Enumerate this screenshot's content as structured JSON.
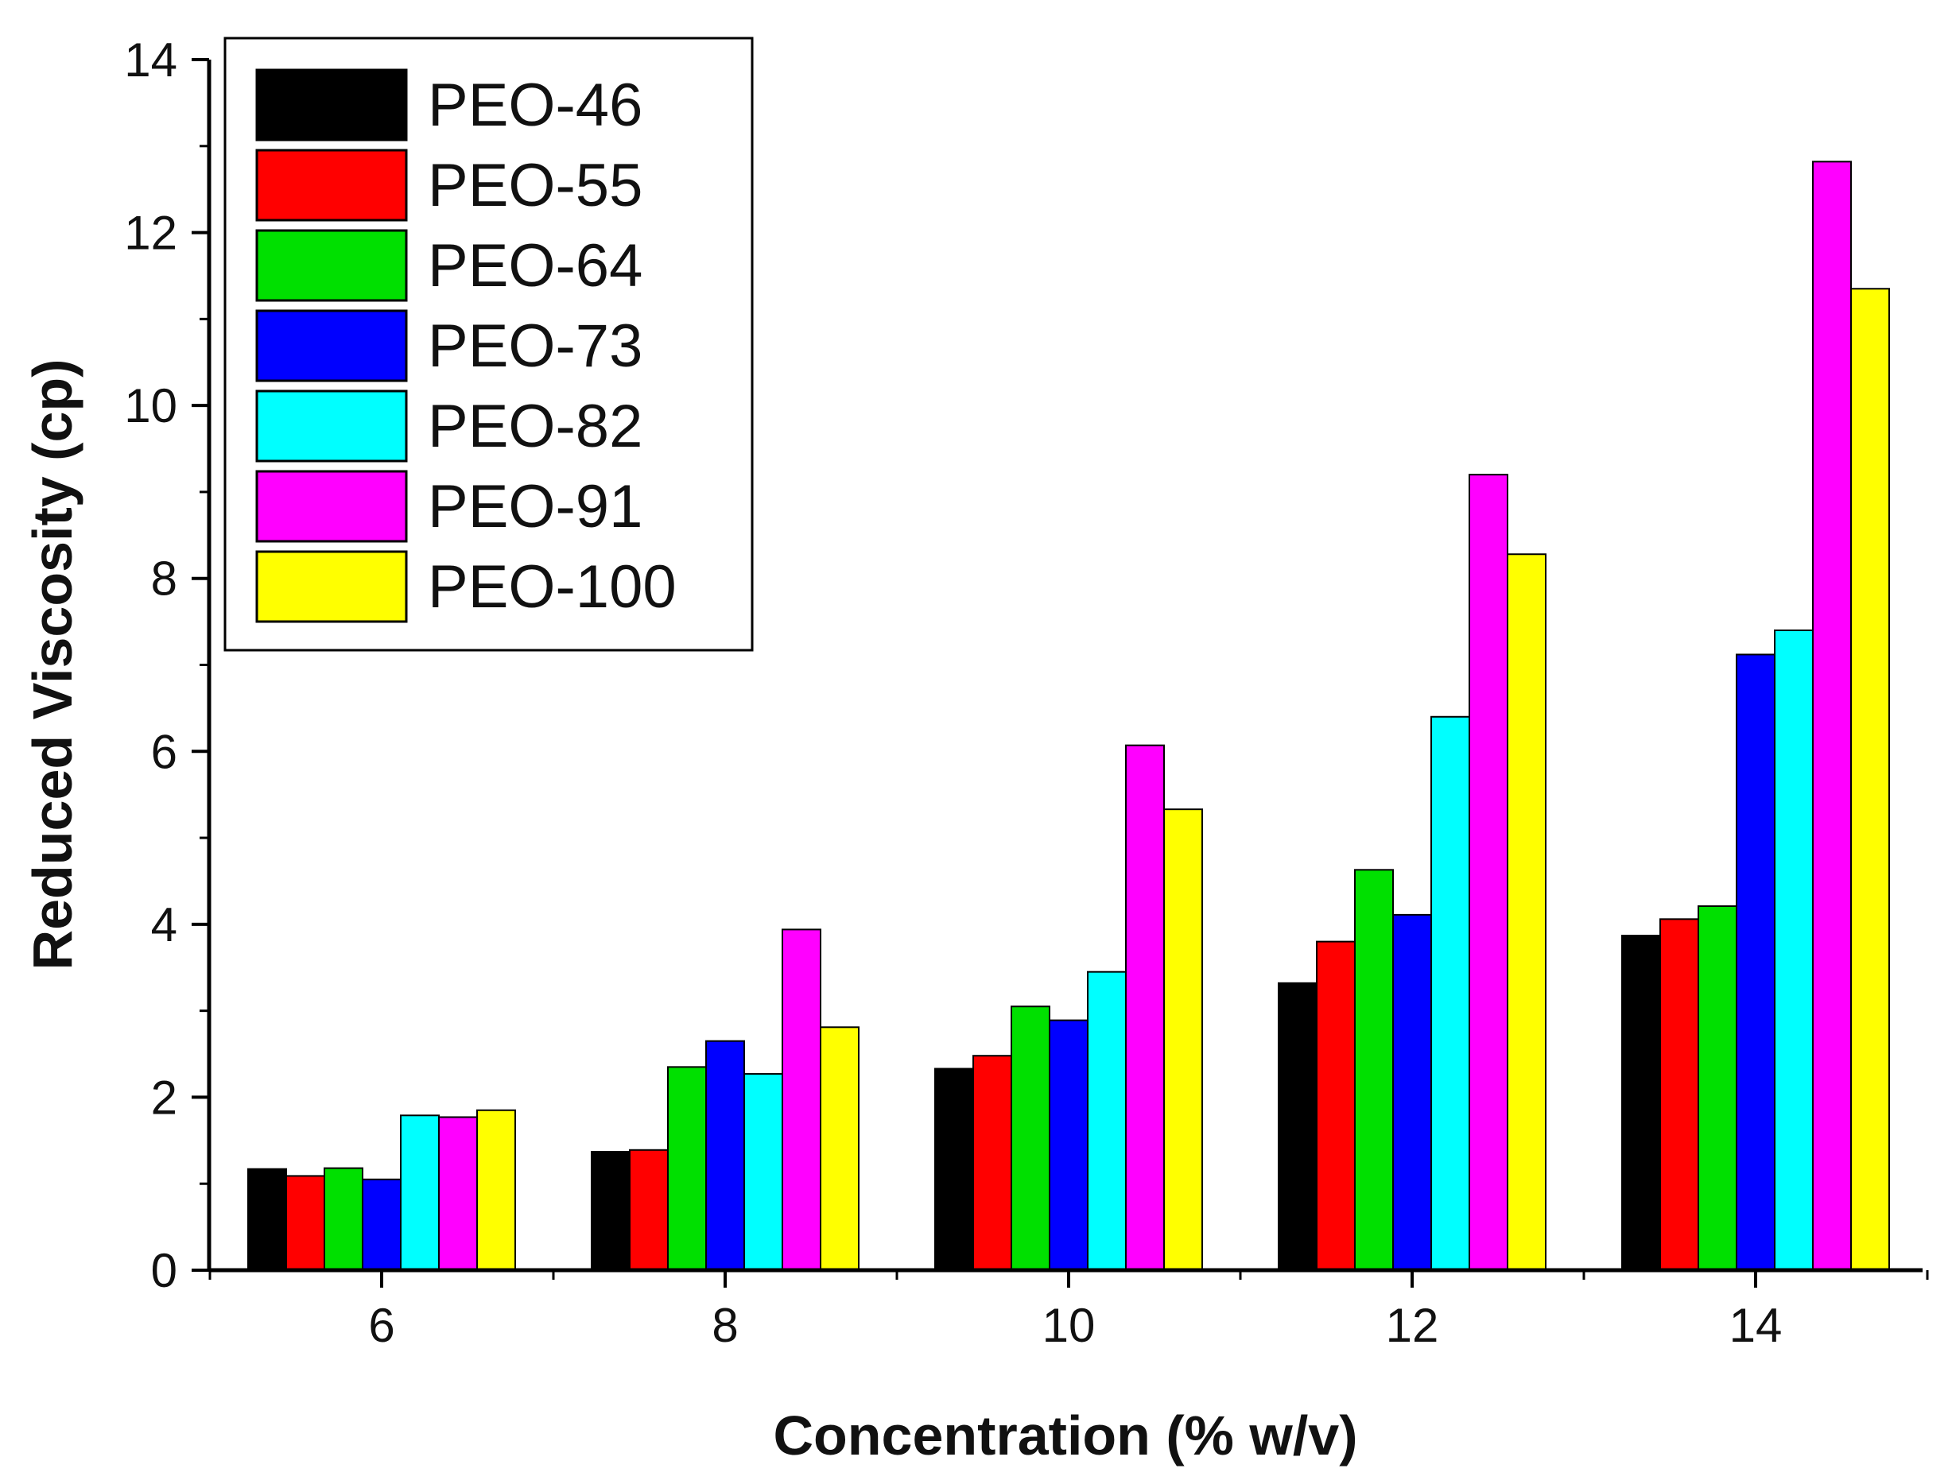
{
  "chart_data": {
    "type": "bar",
    "title": "",
    "xlabel": "Concentration (% w/v)",
    "ylabel": "Reduced Viscosity (cp)",
    "categories": [
      "6",
      "8",
      "10",
      "12",
      "14"
    ],
    "ylim": [
      0,
      14
    ],
    "yticks": [
      "0",
      "2",
      "4",
      "6",
      "8",
      "10",
      "12",
      "14"
    ],
    "legend_position": "top-left",
    "grid": false,
    "series": [
      {
        "name": "PEO-46",
        "color": "#000000",
        "values": [
          1.17,
          1.37,
          2.33,
          3.32,
          3.87
        ]
      },
      {
        "name": "PEO-55",
        "color": "#ff0000",
        "values": [
          1.09,
          1.39,
          2.48,
          3.8,
          4.06
        ]
      },
      {
        "name": "PEO-64",
        "color": "#00e000",
        "values": [
          1.18,
          2.35,
          3.05,
          4.63,
          4.21
        ]
      },
      {
        "name": "PEO-73",
        "color": "#0000ff",
        "values": [
          1.05,
          2.65,
          2.89,
          4.11,
          7.12
        ]
      },
      {
        "name": "PEO-82",
        "color": "#00ffff",
        "values": [
          1.79,
          2.27,
          3.45,
          6.4,
          7.4
        ]
      },
      {
        "name": "PEO-91",
        "color": "#ff00ff",
        "values": [
          1.77,
          3.94,
          6.07,
          9.2,
          12.82
        ]
      },
      {
        "name": "PEO-100",
        "color": "#ffff00",
        "values": [
          1.85,
          2.81,
          5.33,
          8.28,
          11.35
        ]
      }
    ]
  }
}
